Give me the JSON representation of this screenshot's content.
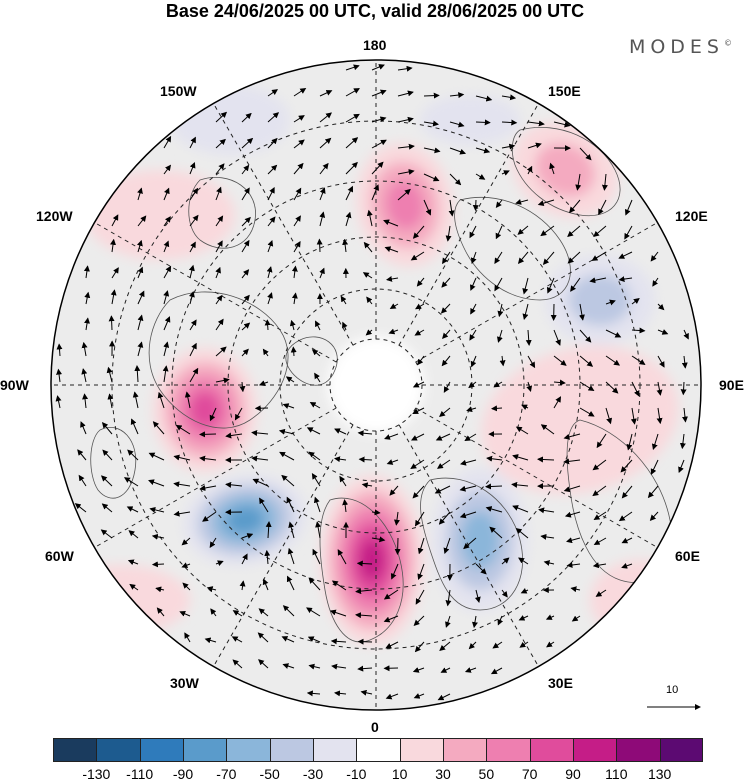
{
  "title": "Base 24/06/2025 00 UTC, valid 28/06/2025 00 UTC",
  "brand": "MODES",
  "brand_mark": "©",
  "longitude_labels": {
    "lon_180": "180",
    "lon_150e": "150E",
    "lon_120e": "120E",
    "lon_90e": "90E",
    "lon_60e": "60E",
    "lon_30e": "30E",
    "lon_0": "0",
    "lon_30w": "30W",
    "lon_60w": "60W",
    "lon_90w": "90W",
    "lon_120w": "120W",
    "lon_150w": "150W"
  },
  "reference_vector": {
    "label": "10"
  },
  "colorbar": {
    "colors": [
      "#1a3b5e",
      "#1d5b8f",
      "#2f7bbb",
      "#5a9bcb",
      "#8bb6da",
      "#bcc8e2",
      "#e3e3ef",
      "#ffffff",
      "#f9d9dd",
      "#f4aac0",
      "#ee7fb0",
      "#e04c9c",
      "#c51d87",
      "#8e0a78",
      "#5c0a72"
    ],
    "ticks": [
      "-130",
      "-110",
      "-90",
      "-70",
      "-50",
      "-30",
      "-10",
      "10",
      "30",
      "50",
      "70",
      "90",
      "110",
      "130"
    ]
  },
  "anomaly_centers": [
    {
      "name": "north-pacific-high",
      "value": 70
    },
    {
      "name": "northwest-pacific-high",
      "value": 50
    },
    {
      "name": "hudson-bay-high",
      "value": 90
    },
    {
      "name": "labrador-low",
      "value": -90
    },
    {
      "name": "western-europe-high",
      "value": 110
    },
    {
      "name": "eastern-europe-low",
      "value": -70
    },
    {
      "name": "west-siberia-high",
      "value": 30
    },
    {
      "name": "east-siberia-low",
      "value": -50
    }
  ]
}
